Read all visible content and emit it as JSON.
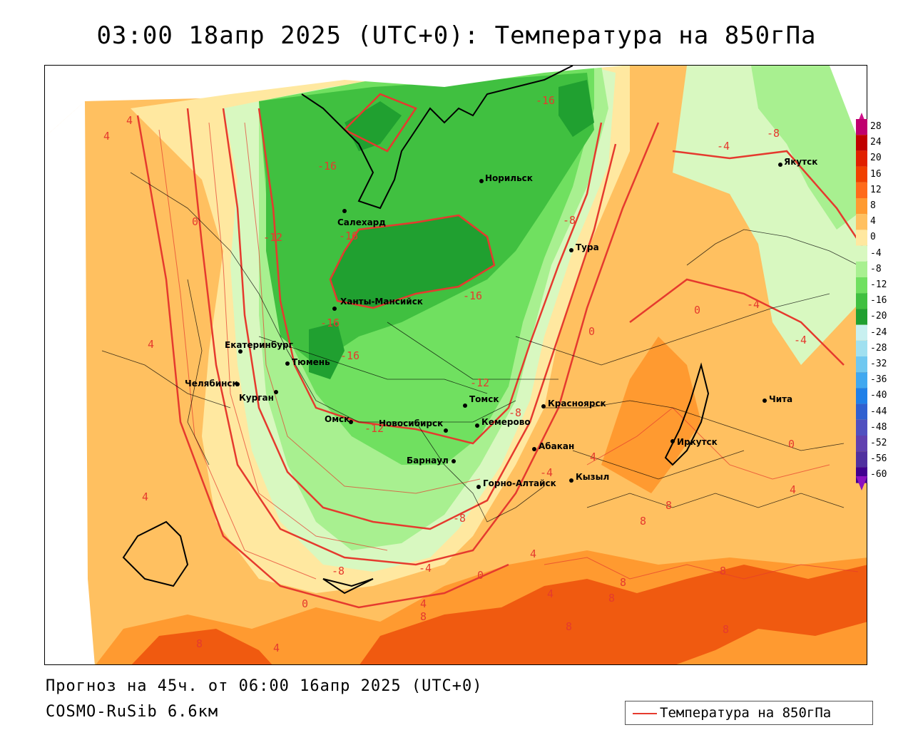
{
  "title": "03:00 18апр 2025 (UTC+0): Температура на 850гПа",
  "forecast_line": "Прогноз на 45ч. от 06:00 16апр 2025 (UTC+0)",
  "model_line": "COSMO-RuSib 6.6км",
  "legend": {
    "label": "Температура на 850гПа",
    "line_color": "#e53a2e"
  },
  "colorbar": {
    "labels": [
      "28",
      "24",
      "20",
      "16",
      "12",
      "8",
      "4",
      "0",
      "-4",
      "-8",
      "-12",
      "-16",
      "-20",
      "-24",
      "-28",
      "-32",
      "-36",
      "-40",
      "-44",
      "-48",
      "-52",
      "-56",
      "-60"
    ],
    "colors": [
      "#c0006e",
      "#c00000",
      "#e02000",
      "#f04000",
      "#ff6a1a",
      "#ff9a30",
      "#ffc060",
      "#ffe8a0",
      "#d8f8c0",
      "#a8f090",
      "#70e060",
      "#40c040",
      "#20a030",
      "#c8f0f0",
      "#a0e0f0",
      "#70c8f0",
      "#40a8f0",
      "#2080e8",
      "#3060d0",
      "#5050c0",
      "#6040b0",
      "#5030a0",
      "#400090"
    ]
  },
  "cities": [
    {
      "name": "Норильск"
    },
    {
      "name": "Якутск"
    },
    {
      "name": "Салехард"
    },
    {
      "name": "Тура"
    },
    {
      "name": "Ханты-Мансийск"
    },
    {
      "name": "Екатеринбург"
    },
    {
      "name": "Тюмень"
    },
    {
      "name": "Челябинск"
    },
    {
      "name": "Курган"
    },
    {
      "name": "Омск"
    },
    {
      "name": "Новосибирск"
    },
    {
      "name": "Томск"
    },
    {
      "name": "Кемерово"
    },
    {
      "name": "Красноярск"
    },
    {
      "name": "Абакан"
    },
    {
      "name": "Барнаул"
    },
    {
      "name": "Горно-Алтайск"
    },
    {
      "name": "Кызыл"
    },
    {
      "name": "Иркутск"
    },
    {
      "name": "Чита"
    }
  ],
  "contour_labels": [
    "-16",
    "-16",
    "-16",
    "-16",
    "-16",
    "-16",
    "-12",
    "-12",
    "-12",
    "-8",
    "-8",
    "-8",
    "-8",
    "-8",
    "-4",
    "-4",
    "-4",
    "-4",
    "-4",
    "0",
    "0",
    "0",
    "0",
    "0",
    "0",
    "4",
    "4",
    "4",
    "4",
    "4",
    "4",
    "4",
    "4",
    "4",
    "4",
    "8",
    "8",
    "8",
    "8",
    "8",
    "8",
    "8",
    "8",
    "8"
  ]
}
